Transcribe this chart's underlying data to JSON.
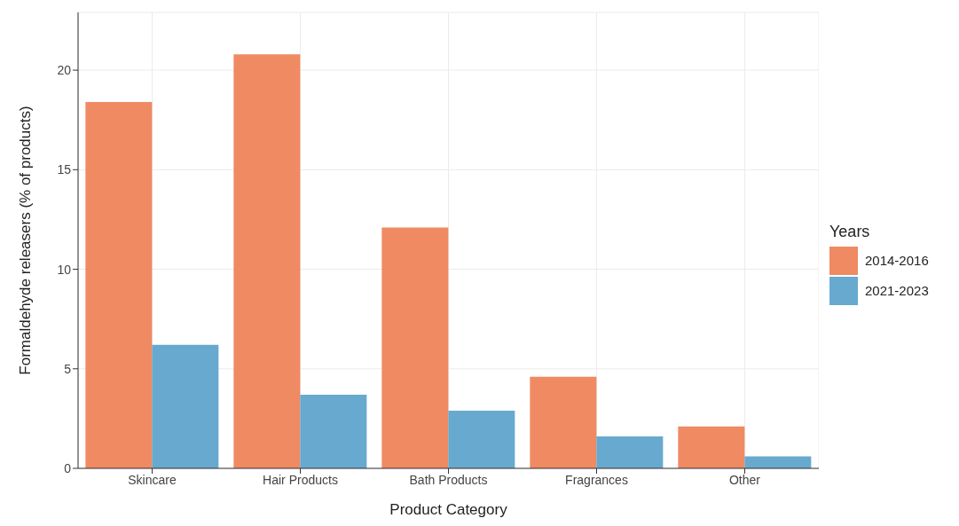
{
  "chart_data": {
    "type": "bar",
    "xlabel": "Product Category",
    "ylabel": "Formaldehyde releasers (% of products)",
    "legend_title": "Years",
    "categories": [
      "Skincare",
      "Hair Products",
      "Bath Products",
      "Fragrances",
      "Other"
    ],
    "series": [
      {
        "name": "2014-2016",
        "color": "#ef8a62",
        "values": [
          18.4,
          20.8,
          12.1,
          4.6,
          2.1
        ]
      },
      {
        "name": "2021-2023",
        "color": "#67a9cf",
        "values": [
          6.2,
          3.7,
          2.9,
          1.6,
          0.6
        ]
      }
    ],
    "ylim": [
      0,
      22.9
    ],
    "yticks": [
      0,
      5,
      10,
      15,
      20
    ],
    "grid": true,
    "legend": "right"
  }
}
